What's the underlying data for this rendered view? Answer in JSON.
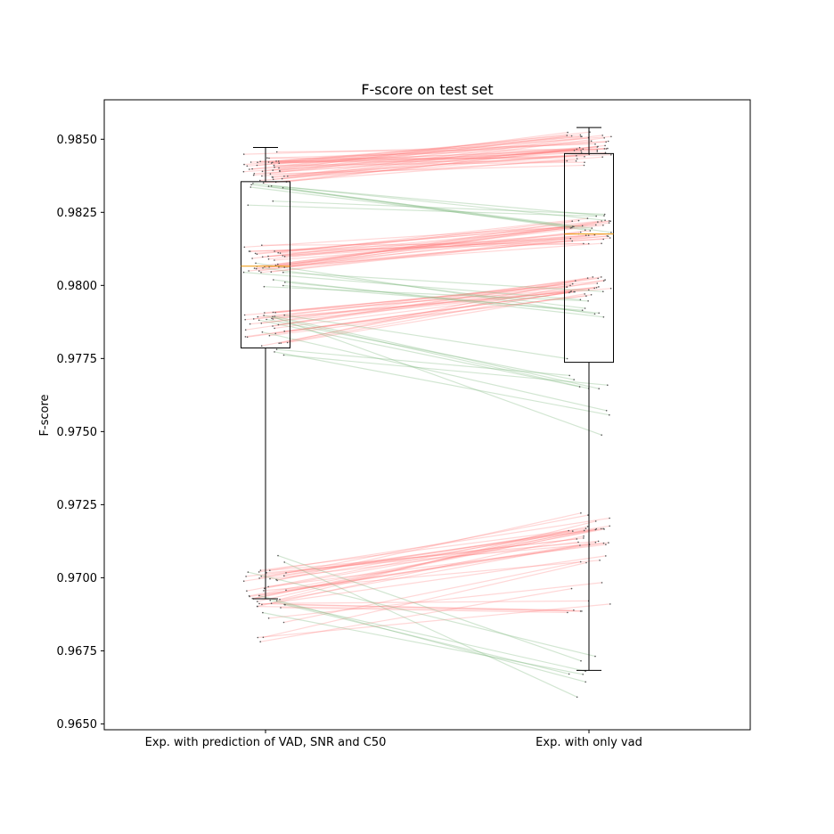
{
  "chart_data": {
    "type": "box",
    "title": "F-score on test set",
    "xlabel": "",
    "ylabel": "F-score",
    "ylim": [
      0.9648,
      0.98635
    ],
    "yticks": [
      "0.9650",
      "0.9675",
      "0.9700",
      "0.9725",
      "0.9750",
      "0.9775",
      "0.9800",
      "0.9825",
      "0.9850"
    ],
    "categories": [
      "Exp. with prediction of VAD, SNR and C50",
      "Exp. with only vad"
    ],
    "boxes": [
      {
        "whisker_low": 0.96928,
        "q1": 0.97786,
        "median": 0.98066,
        "q3": 0.98355,
        "whisker_high": 0.98472
      },
      {
        "whisker_low": 0.96683,
        "q1": 0.97737,
        "median": 0.98176,
        "q3": 0.98451,
        "whisker_high": 0.9854
      }
    ],
    "pair_clusters": [
      {
        "a_range": [
          0.9834,
          0.9846
        ],
        "b_range": [
          0.9841,
          0.9853
        ],
        "count": 40,
        "improving": true
      },
      {
        "a_range": [
          0.9804,
          0.9814
        ],
        "b_range": [
          0.9814,
          0.9823
        ],
        "count": 30,
        "improving": true
      },
      {
        "a_range": [
          0.9779,
          0.9791
        ],
        "b_range": [
          0.9796,
          0.9803
        ],
        "count": 24,
        "improving": true
      },
      {
        "a_range": [
          0.969,
          0.9703
        ],
        "b_range": [
          0.9711,
          0.9723
        ],
        "count": 26,
        "improving": true
      },
      {
        "a_range": [
          0.9678,
          0.97
        ],
        "b_range": [
          0.9688,
          0.971
        ],
        "count": 12,
        "improving": true
      },
      {
        "a_range": [
          0.9826,
          0.9836
        ],
        "b_range": [
          0.9818,
          0.9825
        ],
        "count": 8,
        "improving": false
      },
      {
        "a_range": [
          0.9797,
          0.9812
        ],
        "b_range": [
          0.9788,
          0.9798
        ],
        "count": 8,
        "improving": false
      },
      {
        "a_range": [
          0.9774,
          0.979
        ],
        "b_range": [
          0.9745,
          0.9776
        ],
        "count": 10,
        "improving": false
      },
      {
        "a_range": [
          0.9686,
          0.9709
        ],
        "b_range": [
          0.9657,
          0.9676
        ],
        "count": 7,
        "improving": false
      }
    ],
    "colors": {
      "improving": "#ff7b7b",
      "worsening": "#7fb77f",
      "median": "#f0a020",
      "box": "#000000",
      "point": "#555555"
    }
  }
}
